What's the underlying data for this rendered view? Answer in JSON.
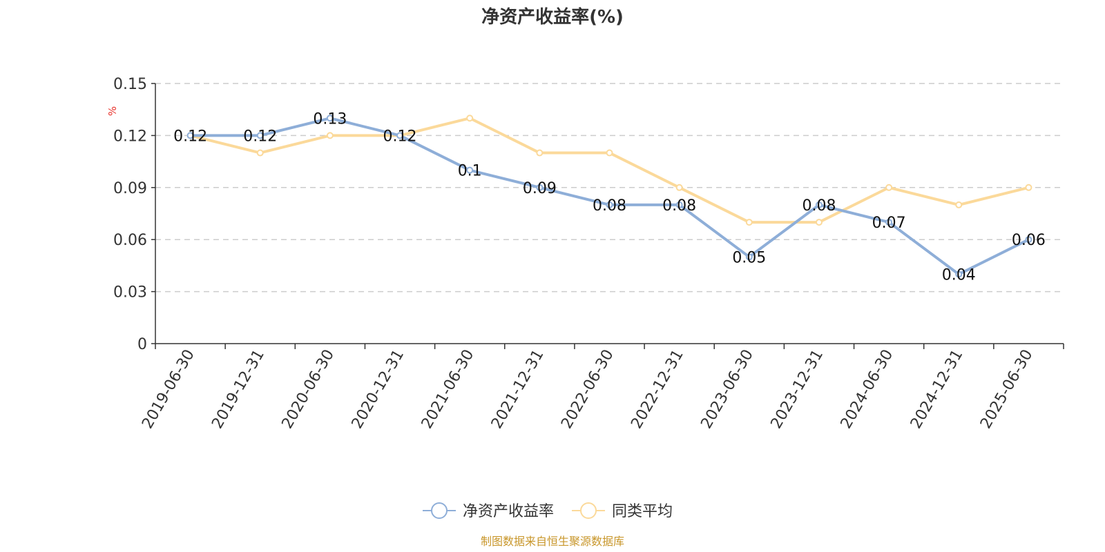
{
  "chart_data": {
    "type": "line",
    "title": "净资产收益率(%)",
    "unit_label": "%",
    "categories": [
      "2019-06-30",
      "2019-12-31",
      "2020-06-30",
      "2020-12-31",
      "2021-06-30",
      "2021-12-31",
      "2022-06-30",
      "2022-12-31",
      "2023-06-30",
      "2023-12-31",
      "2024-06-30",
      "2024-12-31",
      "2025-06-30"
    ],
    "series": [
      {
        "name": "净资产收益率",
        "color": "#8eaed8",
        "values": [
          0.12,
          0.12,
          0.13,
          0.12,
          0.1,
          0.09,
          0.08,
          0.08,
          0.05,
          0.08,
          0.07,
          0.04,
          0.06
        ],
        "labels": [
          "0.12",
          "0.12",
          "0.13",
          "0.12",
          "0.1",
          "0.09",
          "0.08",
          "0.08",
          "0.05",
          "0.08",
          "0.07",
          "0.04",
          "0.06"
        ]
      },
      {
        "name": "同类平均",
        "color": "#fbd99a",
        "values": [
          0.12,
          0.11,
          0.12,
          0.12,
          0.13,
          0.11,
          0.11,
          0.09,
          0.07,
          0.07,
          0.09,
          0.08,
          0.09
        ]
      }
    ],
    "ylim": [
      0,
      0.15
    ],
    "yticks": [
      {
        "value": 0,
        "label": "0"
      },
      {
        "value": 0.03,
        "label": "0.03"
      },
      {
        "value": 0.06,
        "label": "0.06"
      },
      {
        "value": 0.09,
        "label": "0.09"
      },
      {
        "value": 0.12,
        "label": "0.12"
      },
      {
        "value": 0.15,
        "label": "0.15"
      }
    ],
    "grid": true,
    "legend_position": "bottom-center",
    "source": "制图数据来自恒生聚源数据库",
    "colors": {
      "unit": "#e8322b",
      "source": "#c8962a",
      "axis": "#333333",
      "grid": "#cccccc"
    }
  }
}
